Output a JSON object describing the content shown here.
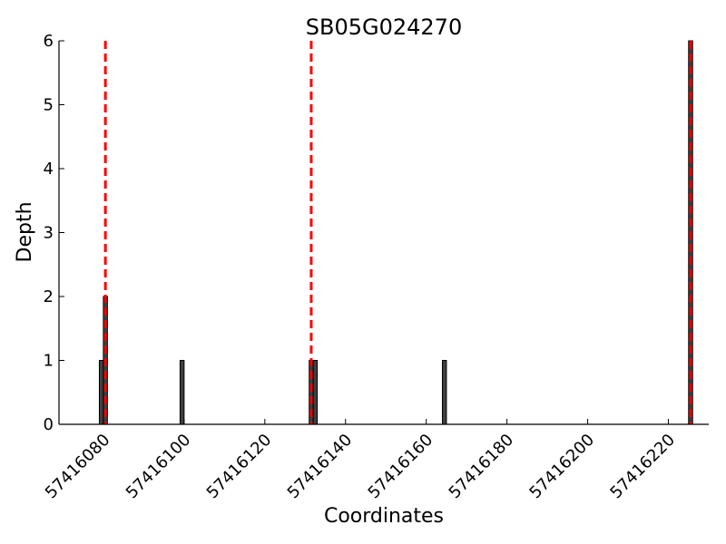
{
  "chart_data": {
    "type": "bar",
    "title": "SB05G024270",
    "xlabel": "Coordinates",
    "ylabel": "Depth",
    "xlim": [
      57416069,
      57416230
    ],
    "ylim": [
      0,
      6
    ],
    "x_ticks": [
      57416080,
      57416100,
      57416120,
      57416140,
      57416160,
      57416180,
      57416200,
      57416220
    ],
    "y_ticks": [
      0,
      1,
      2,
      3,
      4,
      5,
      6
    ],
    "grid": false,
    "bar_color": "#404040",
    "bars": [
      {
        "x": 57416079,
        "value": 1
      },
      {
        "x": 57416080,
        "value": 2
      },
      {
        "x": 57416099,
        "value": 1
      },
      {
        "x": 57416131,
        "value": 1
      },
      {
        "x": 57416132,
        "value": 1
      },
      {
        "x": 57416164,
        "value": 1
      },
      {
        "x": 57416225,
        "value": 6
      }
    ],
    "reference_lines": {
      "color": "#ff0000",
      "style": "dashed",
      "x": [
        57416080.5,
        57416131.5,
        57416225.5
      ]
    }
  }
}
